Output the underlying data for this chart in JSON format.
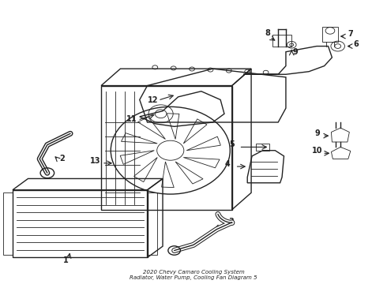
{
  "title": "2020 Chevy Camaro Cooling System\nRadiator, Water Pump, Cooling Fan Diagram 5",
  "background_color": "#ffffff",
  "line_color": "#222222",
  "label_color": "#111111",
  "fig_width": 4.9,
  "fig_height": 3.6,
  "dpi": 100
}
